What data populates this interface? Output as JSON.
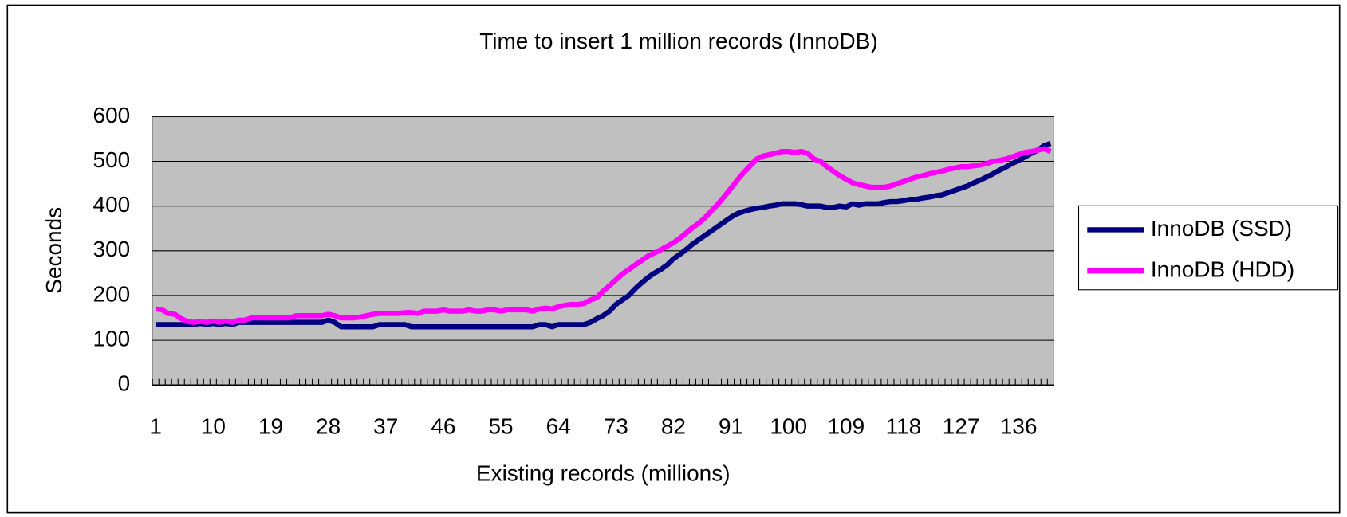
{
  "chart_data": {
    "type": "line",
    "title": "Time to insert 1 million records (InnoDB)",
    "x_label": "Existing records (millions)",
    "y_label": "Seconds",
    "categories": [
      1,
      null,
      null,
      null,
      null,
      null,
      null,
      null,
      null,
      10,
      null,
      null,
      null,
      null,
      null,
      null,
      null,
      null,
      19,
      null,
      null,
      null,
      null,
      null,
      null,
      null,
      null,
      28,
      null,
      null,
      null,
      null,
      null,
      null,
      null,
      null,
      37,
      null,
      null,
      null,
      null,
      null,
      null,
      null,
      null,
      46,
      null,
      null,
      null,
      null,
      null,
      null,
      null,
      null,
      55,
      null,
      null,
      null,
      null,
      null,
      null,
      null,
      null,
      64,
      null,
      null,
      null,
      null,
      null,
      null,
      null,
      null,
      73,
      null,
      null,
      null,
      null,
      null,
      null,
      null,
      null,
      82,
      null,
      null,
      null,
      null,
      null,
      null,
      null,
      null,
      91,
      null,
      null,
      null,
      null,
      null,
      null,
      null,
      null,
      100,
      null,
      null,
      null,
      null,
      null,
      null,
      null,
      null,
      109,
      null,
      null,
      null,
      null,
      null,
      null,
      null,
      null,
      118,
      null,
      null,
      null,
      null,
      null,
      null,
      null,
      null,
      127,
      null,
      null,
      null,
      null,
      null,
      null,
      null,
      null,
      136,
      null,
      null,
      null,
      null,
      null
    ],
    "series": [
      {
        "name": "InnoDB (SSD)",
        "color": "#000080",
        "values": [
          135,
          135,
          135,
          135,
          135,
          135,
          135,
          138,
          135,
          138,
          135,
          138,
          135,
          140,
          140,
          140,
          140,
          140,
          140,
          140,
          140,
          140,
          140,
          140,
          140,
          140,
          140,
          145,
          140,
          130,
          130,
          130,
          130,
          130,
          130,
          135,
          135,
          135,
          135,
          135,
          130,
          130,
          130,
          130,
          130,
          130,
          130,
          130,
          130,
          130,
          130,
          130,
          130,
          130,
          130,
          130,
          130,
          130,
          130,
          130,
          135,
          135,
          130,
          135,
          135,
          135,
          135,
          135,
          140,
          148,
          155,
          165,
          180,
          190,
          200,
          215,
          228,
          240,
          250,
          258,
          268,
          282,
          292,
          303,
          315,
          325,
          335,
          345,
          355,
          365,
          375,
          383,
          388,
          392,
          395,
          397,
          400,
          402,
          405,
          405,
          405,
          403,
          400,
          400,
          400,
          397,
          397,
          400,
          398,
          405,
          402,
          405,
          405,
          405,
          408,
          410,
          410,
          412,
          415,
          415,
          418,
          420,
          423,
          425,
          430,
          435,
          440,
          445,
          452,
          458,
          465,
          472,
          480,
          487,
          495,
          502,
          510,
          518,
          525,
          535,
          540
        ]
      },
      {
        "name": "InnoDB (HDD)",
        "color": "#ff00ff",
        "values": [
          170,
          168,
          160,
          158,
          148,
          142,
          140,
          142,
          140,
          143,
          140,
          143,
          140,
          145,
          145,
          150,
          150,
          150,
          150,
          150,
          150,
          150,
          155,
          155,
          155,
          155,
          155,
          158,
          155,
          150,
          150,
          150,
          152,
          155,
          158,
          160,
          160,
          160,
          160,
          162,
          162,
          160,
          165,
          165,
          165,
          168,
          165,
          165,
          165,
          168,
          165,
          165,
          168,
          168,
          165,
          168,
          168,
          168,
          168,
          165,
          170,
          172,
          170,
          175,
          178,
          180,
          180,
          182,
          190,
          195,
          210,
          222,
          235,
          248,
          258,
          268,
          278,
          288,
          295,
          302,
          310,
          318,
          328,
          340,
          352,
          362,
          375,
          390,
          405,
          422,
          440,
          458,
          475,
          490,
          505,
          512,
          515,
          518,
          522,
          522,
          520,
          522,
          518,
          505,
          500,
          488,
          478,
          468,
          460,
          452,
          448,
          445,
          442,
          442,
          442,
          445,
          450,
          455,
          460,
          465,
          468,
          472,
          475,
          478,
          482,
          485,
          488,
          488,
          490,
          492,
          495,
          500,
          502,
          505,
          510,
          515,
          520,
          522,
          525,
          528,
          522
        ]
      }
    ],
    "ylim": [
      0,
      600
    ],
    "yticks": [
      0,
      100,
      200,
      300,
      400,
      500,
      600
    ],
    "grid": true,
    "legend": "right"
  }
}
